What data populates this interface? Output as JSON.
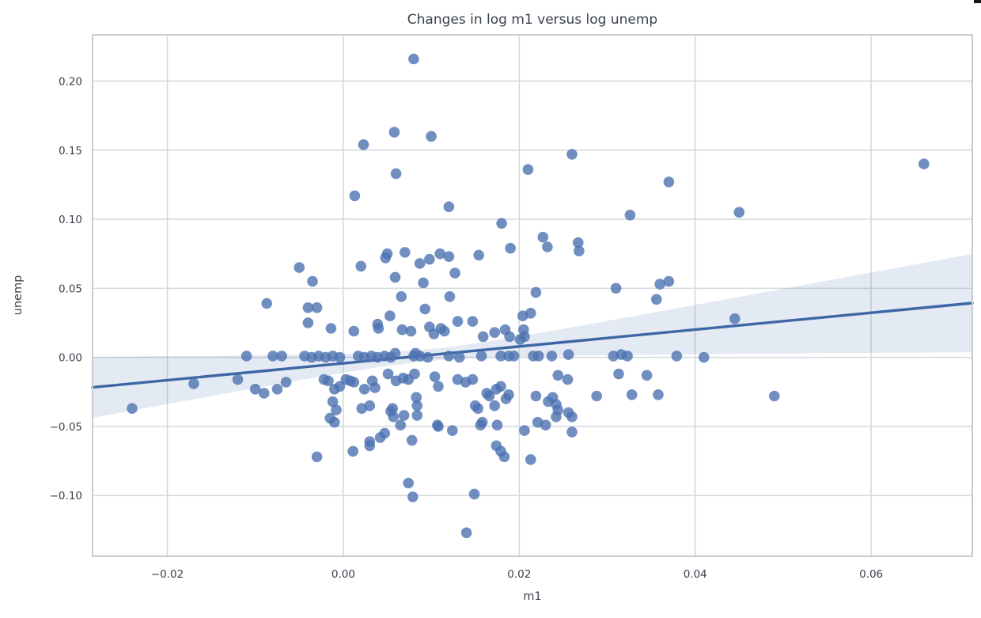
{
  "chart_data": {
    "type": "scatter",
    "title": "Changes in log m1 versus log unemp",
    "xlabel": "m1",
    "ylabel": "unemp",
    "xlim": [
      -0.0285,
      0.0715
    ],
    "ylim": [
      -0.144,
      0.2335
    ],
    "grid": true,
    "legend": "none",
    "xticks": [
      {
        "v": -0.02,
        "label": "−0.02"
      },
      {
        "v": 0.0,
        "label": "0.00"
      },
      {
        "v": 0.02,
        "label": "0.02"
      },
      {
        "v": 0.04,
        "label": "0.04"
      },
      {
        "v": 0.06,
        "label": "0.06"
      }
    ],
    "yticks": [
      {
        "v": -0.1,
        "label": "−0.10"
      },
      {
        "v": -0.05,
        "label": "−0.05"
      },
      {
        "v": 0.0,
        "label": "0.00"
      },
      {
        "v": 0.05,
        "label": "0.05"
      },
      {
        "v": 0.1,
        "label": "0.10"
      },
      {
        "v": 0.15,
        "label": "0.15"
      },
      {
        "v": 0.2,
        "label": "0.20"
      }
    ],
    "regression": {
      "slope": 0.61,
      "intercept": -0.0043,
      "ci_halfwidth_min": 0.0042,
      "ci_flare": 0.57,
      "x_mean": 0.0095
    },
    "points": [
      [
        0.008,
        0.216
      ],
      [
        0.0058,
        0.163
      ],
      [
        0.01,
        0.16
      ],
      [
        0.0023,
        0.154
      ],
      [
        0.026,
        0.147
      ],
      [
        0.066,
        0.14
      ],
      [
        0.021,
        0.136
      ],
      [
        0.006,
        0.133
      ],
      [
        0.037,
        0.127
      ],
      [
        0.0013,
        0.117
      ],
      [
        0.012,
        0.109
      ],
      [
        0.045,
        0.105
      ],
      [
        0.0326,
        0.103
      ],
      [
        0.018,
        0.097
      ],
      [
        0.0227,
        0.087
      ],
      [
        0.0232,
        0.08
      ],
      [
        0.0267,
        0.083
      ],
      [
        0.0268,
        0.077
      ],
      [
        0.019,
        0.079
      ],
      [
        0.007,
        0.076
      ],
      [
        0.005,
        0.075
      ],
      [
        0.0154,
        0.074
      ],
      [
        0.011,
        0.075
      ],
      [
        0.012,
        0.073
      ],
      [
        0.0087,
        0.068
      ],
      [
        0.0098,
        0.071
      ],
      [
        0.0127,
        0.061
      ],
      [
        0.0059,
        0.058
      ],
      [
        0.0091,
        0.054
      ],
      [
        0.031,
        0.05
      ],
      [
        0.036,
        0.053
      ],
      [
        0.037,
        0.055
      ],
      [
        0.0219,
        0.047
      ],
      [
        0.0066,
        0.044
      ],
      [
        0.0121,
        0.044
      ],
      [
        0.0356,
        0.042
      ],
      [
        -0.005,
        0.065
      ],
      [
        -0.0035,
        0.055
      ],
      [
        -0.0087,
        0.039
      ],
      [
        -0.004,
        0.036
      ],
      [
        -0.003,
        0.036
      ],
      [
        -0.004,
        0.025
      ],
      [
        -0.0014,
        0.021
      ],
      [
        0.002,
        0.066
      ],
      [
        0.0048,
        0.072
      ],
      [
        0.0445,
        0.028
      ],
      [
        0.0053,
        0.03
      ],
      [
        0.0204,
        0.03
      ],
      [
        0.0213,
        0.032
      ],
      [
        0.013,
        0.026
      ],
      [
        0.0147,
        0.026
      ],
      [
        0.0093,
        0.035
      ],
      [
        0.0012,
        0.019
      ],
      [
        0.004,
        0.021
      ],
      [
        0.0039,
        0.024
      ],
      [
        0.0067,
        0.02
      ],
      [
        0.0077,
        0.019
      ],
      [
        0.0098,
        0.022
      ],
      [
        0.0103,
        0.017
      ],
      [
        0.0111,
        0.021
      ],
      [
        0.0115,
        0.019
      ],
      [
        0.0159,
        0.015
      ],
      [
        0.0172,
        0.018
      ],
      [
        0.0184,
        0.02
      ],
      [
        0.0189,
        0.015
      ],
      [
        0.0205,
        0.02
      ],
      [
        0.0206,
        0.015
      ],
      [
        0.0201,
        0.013
      ],
      [
        -0.011,
        0.001
      ],
      [
        -0.008,
        0.001
      ],
      [
        -0.007,
        0.001
      ],
      [
        -0.0044,
        0.001
      ],
      [
        -0.0036,
        0.0
      ],
      [
        -0.0028,
        0.001
      ],
      [
        -0.002,
        0.0
      ],
      [
        -0.0012,
        0.001
      ],
      [
        -0.0004,
        0.0
      ],
      [
        0.0017,
        0.001
      ],
      [
        0.0024,
        0.0
      ],
      [
        0.0032,
        0.001
      ],
      [
        0.0039,
        0.0
      ],
      [
        0.0047,
        0.001
      ],
      [
        0.0054,
        0.0
      ],
      [
        0.0059,
        0.003
      ],
      [
        0.008,
        0.001
      ],
      [
        0.0082,
        0.003
      ],
      [
        0.0087,
        0.001
      ],
      [
        0.0096,
        0.0
      ],
      [
        0.012,
        0.001
      ],
      [
        0.0132,
        0.0
      ],
      [
        0.0157,
        0.001
      ],
      [
        0.0179,
        0.001
      ],
      [
        0.0188,
        0.001
      ],
      [
        0.0194,
        0.001
      ],
      [
        0.0216,
        0.001
      ],
      [
        0.0222,
        0.001
      ],
      [
        0.0237,
        0.001
      ],
      [
        0.0256,
        0.002
      ],
      [
        0.0307,
        0.001
      ],
      [
        0.0316,
        0.002
      ],
      [
        0.0323,
        0.001
      ],
      [
        0.0379,
        0.001
      ],
      [
        0.041,
        0.0
      ],
      [
        -0.017,
        -0.019
      ],
      [
        -0.012,
        -0.016
      ],
      [
        -0.01,
        -0.023
      ],
      [
        -0.009,
        -0.026
      ],
      [
        -0.0075,
        -0.023
      ],
      [
        -0.0065,
        -0.018
      ],
      [
        -0.0022,
        -0.016
      ],
      [
        -0.0017,
        -0.017
      ],
      [
        -0.001,
        -0.023
      ],
      [
        -0.0004,
        -0.021
      ],
      [
        0.0003,
        -0.016
      ],
      [
        0.0008,
        -0.017
      ],
      [
        0.0012,
        -0.018
      ],
      [
        0.0033,
        -0.017
      ],
      [
        0.0036,
        -0.022
      ],
      [
        0.0024,
        -0.023
      ],
      [
        0.0051,
        -0.012
      ],
      [
        0.006,
        -0.017
      ],
      [
        0.0068,
        -0.015
      ],
      [
        0.0074,
        -0.016
      ],
      [
        0.0081,
        -0.012
      ],
      [
        0.0104,
        -0.014
      ],
      [
        0.0108,
        -0.021
      ],
      [
        0.013,
        -0.016
      ],
      [
        0.0139,
        -0.018
      ],
      [
        0.0147,
        -0.016
      ],
      [
        0.0244,
        -0.013
      ],
      [
        0.0255,
        -0.016
      ],
      [
        0.0313,
        -0.012
      ],
      [
        0.0345,
        -0.013
      ],
      [
        0.0163,
        -0.026
      ],
      [
        0.0166,
        -0.028
      ],
      [
        0.0174,
        -0.023
      ],
      [
        0.0179,
        -0.021
      ],
      [
        0.0219,
        -0.028
      ],
      [
        0.0233,
        -0.032
      ],
      [
        0.0238,
        -0.029
      ],
      [
        0.0288,
        -0.028
      ],
      [
        0.0328,
        -0.027
      ],
      [
        0.0358,
        -0.027
      ],
      [
        0.049,
        -0.028
      ],
      [
        0.0083,
        -0.029
      ],
      [
        -0.024,
        -0.037
      ],
      [
        -0.0012,
        -0.032
      ],
      [
        -0.0008,
        -0.038
      ],
      [
        -0.0015,
        -0.044
      ],
      [
        -0.001,
        -0.047
      ],
      [
        0.0021,
        -0.037
      ],
      [
        0.003,
        -0.035
      ],
      [
        0.0054,
        -0.039
      ],
      [
        0.0056,
        -0.037
      ],
      [
        0.0057,
        -0.043
      ],
      [
        0.0065,
        -0.049
      ],
      [
        0.0069,
        -0.042
      ],
      [
        0.0084,
        -0.035
      ],
      [
        0.0084,
        -0.042
      ],
      [
        0.0108,
        -0.05
      ],
      [
        0.0107,
        -0.049
      ],
      [
        0.0124,
        -0.053
      ],
      [
        0.015,
        -0.035
      ],
      [
        0.0153,
        -0.037
      ],
      [
        0.0156,
        -0.049
      ],
      [
        0.0158,
        -0.047
      ],
      [
        0.0172,
        -0.035
      ],
      [
        0.0175,
        -0.049
      ],
      [
        0.0185,
        -0.03
      ],
      [
        0.0188,
        -0.027
      ],
      [
        0.0206,
        -0.053
      ],
      [
        0.0242,
        -0.034
      ],
      [
        0.0244,
        -0.038
      ],
      [
        0.0242,
        -0.043
      ],
      [
        0.0256,
        -0.04
      ],
      [
        0.026,
        -0.043
      ],
      [
        0.026,
        -0.054
      ],
      [
        0.0221,
        -0.047
      ],
      [
        0.023,
        -0.049
      ],
      [
        0.0047,
        -0.055
      ],
      [
        0.003,
        -0.061
      ],
      [
        0.0042,
        -0.058
      ],
      [
        0.003,
        -0.064
      ],
      [
        0.0011,
        -0.068
      ],
      [
        -0.003,
        -0.072
      ],
      [
        0.0078,
        -0.06
      ],
      [
        0.0174,
        -0.064
      ],
      [
        0.0179,
        -0.068
      ],
      [
        0.0183,
        -0.072
      ],
      [
        0.0213,
        -0.074
      ],
      [
        0.0074,
        -0.091
      ],
      [
        0.0079,
        -0.101
      ],
      [
        0.0149,
        -0.099
      ],
      [
        0.014,
        -0.127
      ]
    ]
  },
  "colors": {
    "point": "#4c72b0",
    "line": "#3d66a4",
    "band": "rgba(76,114,176,0.15)",
    "grid": "#d4d8dc",
    "spine": "#c8ccd0",
    "text": "#3a414b"
  }
}
